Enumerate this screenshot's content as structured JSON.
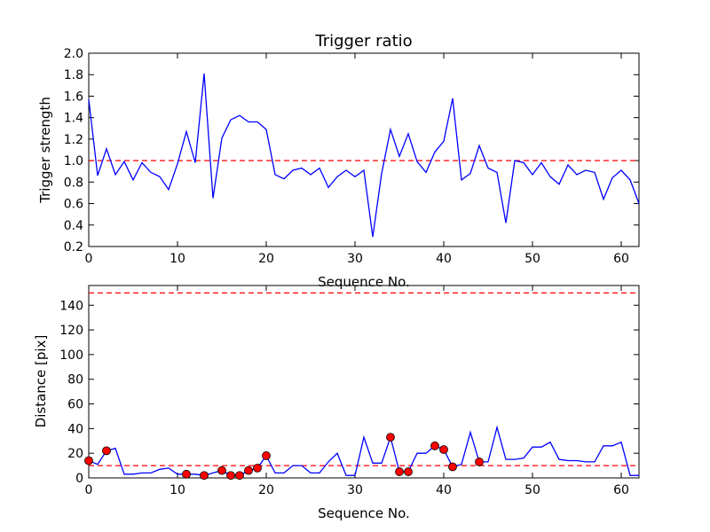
{
  "chart_data": [
    {
      "type": "line",
      "title": "Trigger ratio",
      "xlabel": "Sequence No.",
      "ylabel": "Trigger strength",
      "xlim": [
        0,
        62
      ],
      "ylim": [
        0.2,
        2.0
      ],
      "xticks": [
        "0",
        "10",
        "20",
        "30",
        "40",
        "50",
        "60"
      ],
      "yticks": [
        "0.2",
        "0.4",
        "0.6",
        "0.8",
        "1.0",
        "1.2",
        "1.4",
        "1.6",
        "1.8",
        "2.0"
      ],
      "grid": false,
      "colors": {
        "line": "#0000ff",
        "threshold": "#ff0000"
      },
      "series": [
        {
          "x": [
            0,
            1,
            2,
            3,
            4,
            5,
            6,
            7,
            8,
            9,
            10,
            11,
            12,
            13,
            14,
            15,
            16,
            17,
            18,
            19,
            20,
            21,
            22,
            23,
            24,
            25,
            26,
            27,
            28,
            29,
            30,
            31,
            32,
            33,
            34,
            35,
            36,
            37,
            38,
            39,
            40,
            41,
            42,
            43,
            44,
            45,
            46,
            47,
            48,
            49,
            50,
            51,
            52,
            53,
            54,
            55,
            56,
            57,
            58,
            59,
            60,
            61,
            62
          ],
          "values": [
            1.57,
            0.86,
            1.11,
            0.87,
            0.99,
            0.82,
            0.98,
            0.89,
            0.85,
            0.73,
            0.97,
            1.27,
            0.98,
            1.81,
            0.65,
            1.21,
            1.38,
            1.42,
            1.36,
            1.36,
            1.29,
            0.87,
            0.83,
            0.91,
            0.93,
            0.87,
            0.93,
            0.75,
            0.85,
            0.91,
            0.85,
            0.91,
            0.29,
            0.88,
            1.29,
            1.04,
            1.25,
            0.99,
            0.89,
            1.08,
            1.18,
            1.58,
            0.82,
            0.88,
            1.14,
            0.93,
            0.89,
            0.42,
            1.0,
            0.98,
            0.87,
            0.98,
            0.85,
            0.78,
            0.96,
            0.87,
            0.91,
            0.89,
            0.64,
            0.84,
            0.91,
            0.82,
            0.6
          ]
        }
      ],
      "hlines": [
        1.0
      ]
    },
    {
      "type": "line",
      "title": "",
      "xlabel": "Sequence No.",
      "ylabel": "Distance [pix]",
      "xlim": [
        0,
        62
      ],
      "ylim": [
        0,
        156
      ],
      "xticks": [
        "0",
        "10",
        "20",
        "30",
        "40",
        "50",
        "60"
      ],
      "yticks": [
        "0",
        "20",
        "40",
        "60",
        "80",
        "100",
        "120",
        "140"
      ],
      "grid": false,
      "colors": {
        "line": "#0000ff",
        "threshold": "#ff0000",
        "marker": "#ff0000"
      },
      "series": [
        {
          "x": [
            0,
            1,
            2,
            3,
            4,
            5,
            6,
            7,
            8,
            9,
            10,
            11,
            12,
            13,
            14,
            15,
            16,
            17,
            18,
            19,
            20,
            21,
            22,
            23,
            24,
            25,
            26,
            27,
            28,
            29,
            30,
            31,
            32,
            33,
            34,
            35,
            36,
            37,
            38,
            39,
            40,
            41,
            42,
            43,
            44,
            45,
            46,
            47,
            48,
            49,
            50,
            51,
            52,
            53,
            54,
            55,
            56,
            57,
            58,
            59,
            60,
            61,
            62
          ],
          "values": [
            14,
            11,
            22,
            24,
            3,
            3,
            4,
            4,
            7,
            8,
            3,
            3,
            3,
            2,
            4,
            6,
            2,
            2,
            6,
            8,
            18,
            4,
            4,
            10,
            10,
            4,
            4,
            13,
            20,
            2,
            2,
            33,
            12,
            12,
            33,
            5,
            5,
            20,
            20,
            26,
            23,
            9,
            11,
            37,
            13,
            13,
            41,
            15,
            15,
            16,
            25,
            25,
            29,
            15,
            14,
            14,
            13,
            13,
            26,
            26,
            29,
            2,
            2
          ]
        }
      ],
      "markers": {
        "x": [
          0,
          2,
          11,
          13,
          15,
          16,
          17,
          18,
          19,
          20,
          34,
          35,
          36,
          39,
          40,
          41,
          44
        ],
        "values": [
          14,
          22,
          3,
          2,
          6,
          2,
          2,
          6,
          8,
          18,
          33,
          5,
          5,
          26,
          23,
          9,
          13
        ]
      },
      "hlines": [
        150,
        10
      ]
    }
  ]
}
